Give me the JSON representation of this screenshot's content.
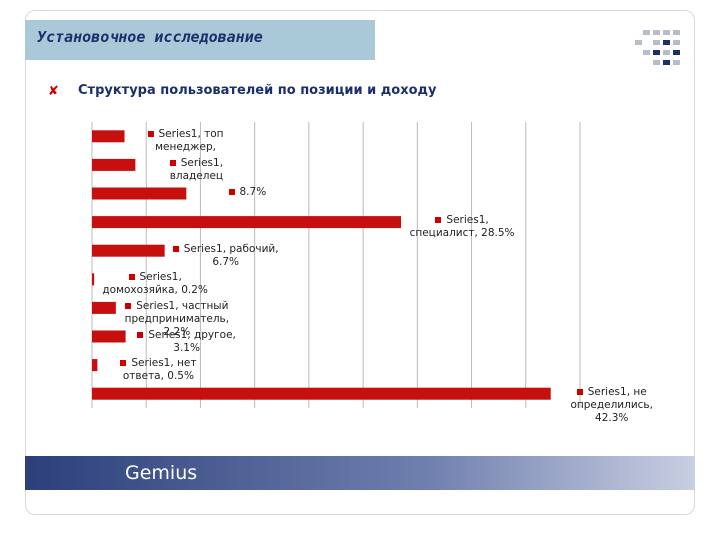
{
  "slide": {
    "title": "Установочное исследование",
    "brand": "Gemius"
  },
  "chart_data": {
    "type": "bar",
    "orientation": "horizontal",
    "title": "Структура пользователей по позиции и доходу",
    "color": "#c80f0f",
    "values": [
      3,
      4,
      8.7,
      28.5,
      6.7,
      0.2,
      2.2,
      3.1,
      0.5,
      42.3
    ],
    "value_labels": [
      "Series1, топ менеджер,",
      "Series1, владелец",
      "8.7%",
      "Series1, специалист, 28.5%",
      "Series1, рабочий, 6.7%",
      "Series1, домохозяйка, 0.2%",
      "Series1, частный предприниматель, 2.2%",
      "Series1, другое, 3.1%",
      "Series1, нет ответа, 0.5%",
      "Series1, не определились, 42.3%"
    ],
    "xlim": [
      0,
      45
    ],
    "xticks": [
      0,
      5,
      10,
      15,
      20,
      25,
      30,
      35,
      40,
      45
    ],
    "grid": true
  }
}
